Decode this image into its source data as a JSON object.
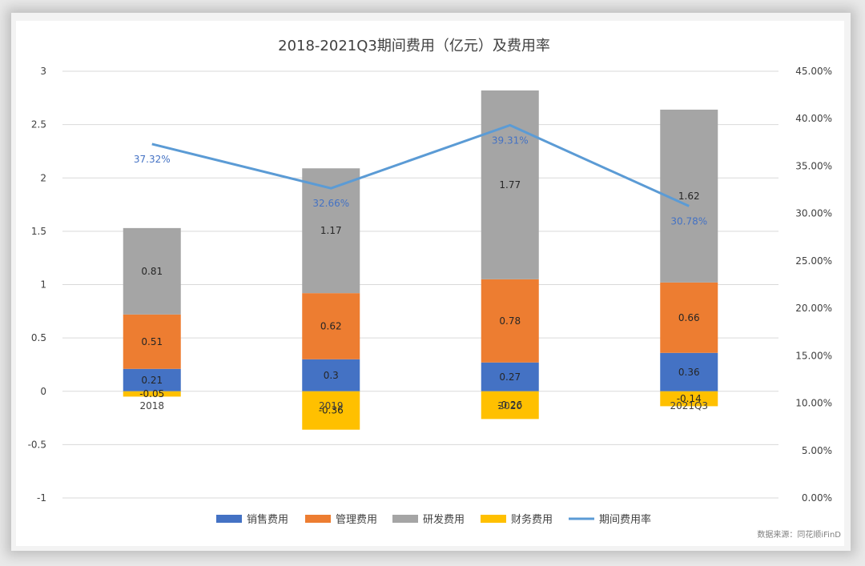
{
  "chart_data": {
    "type": "bar",
    "subtype": "stacked bar with line on secondary axis",
    "title": "2018-2021Q3期间费用（亿元）及费用率",
    "categories": [
      "2018",
      "2019",
      "2020",
      "2021Q3"
    ],
    "series": [
      {
        "name": "销售费用",
        "type": "bar",
        "axis": "left",
        "color": "#4472c4",
        "values": [
          0.21,
          0.3,
          0.27,
          0.36
        ]
      },
      {
        "name": "管理费用",
        "type": "bar",
        "axis": "left",
        "color": "#ed7d31",
        "values": [
          0.51,
          0.62,
          0.78,
          0.66
        ]
      },
      {
        "name": "研发费用",
        "type": "bar",
        "axis": "left",
        "color": "#a5a5a5",
        "values": [
          0.81,
          1.17,
          1.77,
          1.62
        ]
      },
      {
        "name": "财务费用",
        "type": "bar",
        "axis": "left",
        "color": "#ffc000",
        "values": [
          -0.05,
          -0.36,
          -0.26,
          -0.14
        ]
      },
      {
        "name": "期间费用率",
        "type": "line",
        "axis": "right",
        "color": "#5b9bd5",
        "values": [
          37.32,
          32.66,
          39.31,
          30.78
        ],
        "labels": [
          "37.32%",
          "32.66%",
          "39.31%",
          "30.78%"
        ]
      }
    ],
    "value_labels": {
      "销售费用": [
        "0.21",
        "0.3",
        "0.27",
        "0.36"
      ],
      "管理费用": [
        "0.51",
        "0.62",
        "0.78",
        "0.66"
      ],
      "研发费用": [
        "0.81",
        "1.17",
        "1.77",
        "1.62"
      ],
      "财务费用": [
        "-0.05",
        "-0.36",
        "-0.26",
        "-0.14"
      ]
    },
    "ylim_left": [
      -1,
      3
    ],
    "yticks_left": [
      "3",
      "2.5",
      "2",
      "1.5",
      "1",
      "0.5",
      "0",
      "-0.5",
      "-1"
    ],
    "ylim_right": [
      0,
      45
    ],
    "yticks_right": [
      "45.00%",
      "40.00%",
      "35.00%",
      "30.00%",
      "25.00%",
      "20.00%",
      "15.00%",
      "10.00%",
      "5.00%",
      "0.00%"
    ],
    "grid": true,
    "legend_position": "bottom"
  },
  "footer": {
    "source": "数据来源：同花顺iFinD"
  }
}
